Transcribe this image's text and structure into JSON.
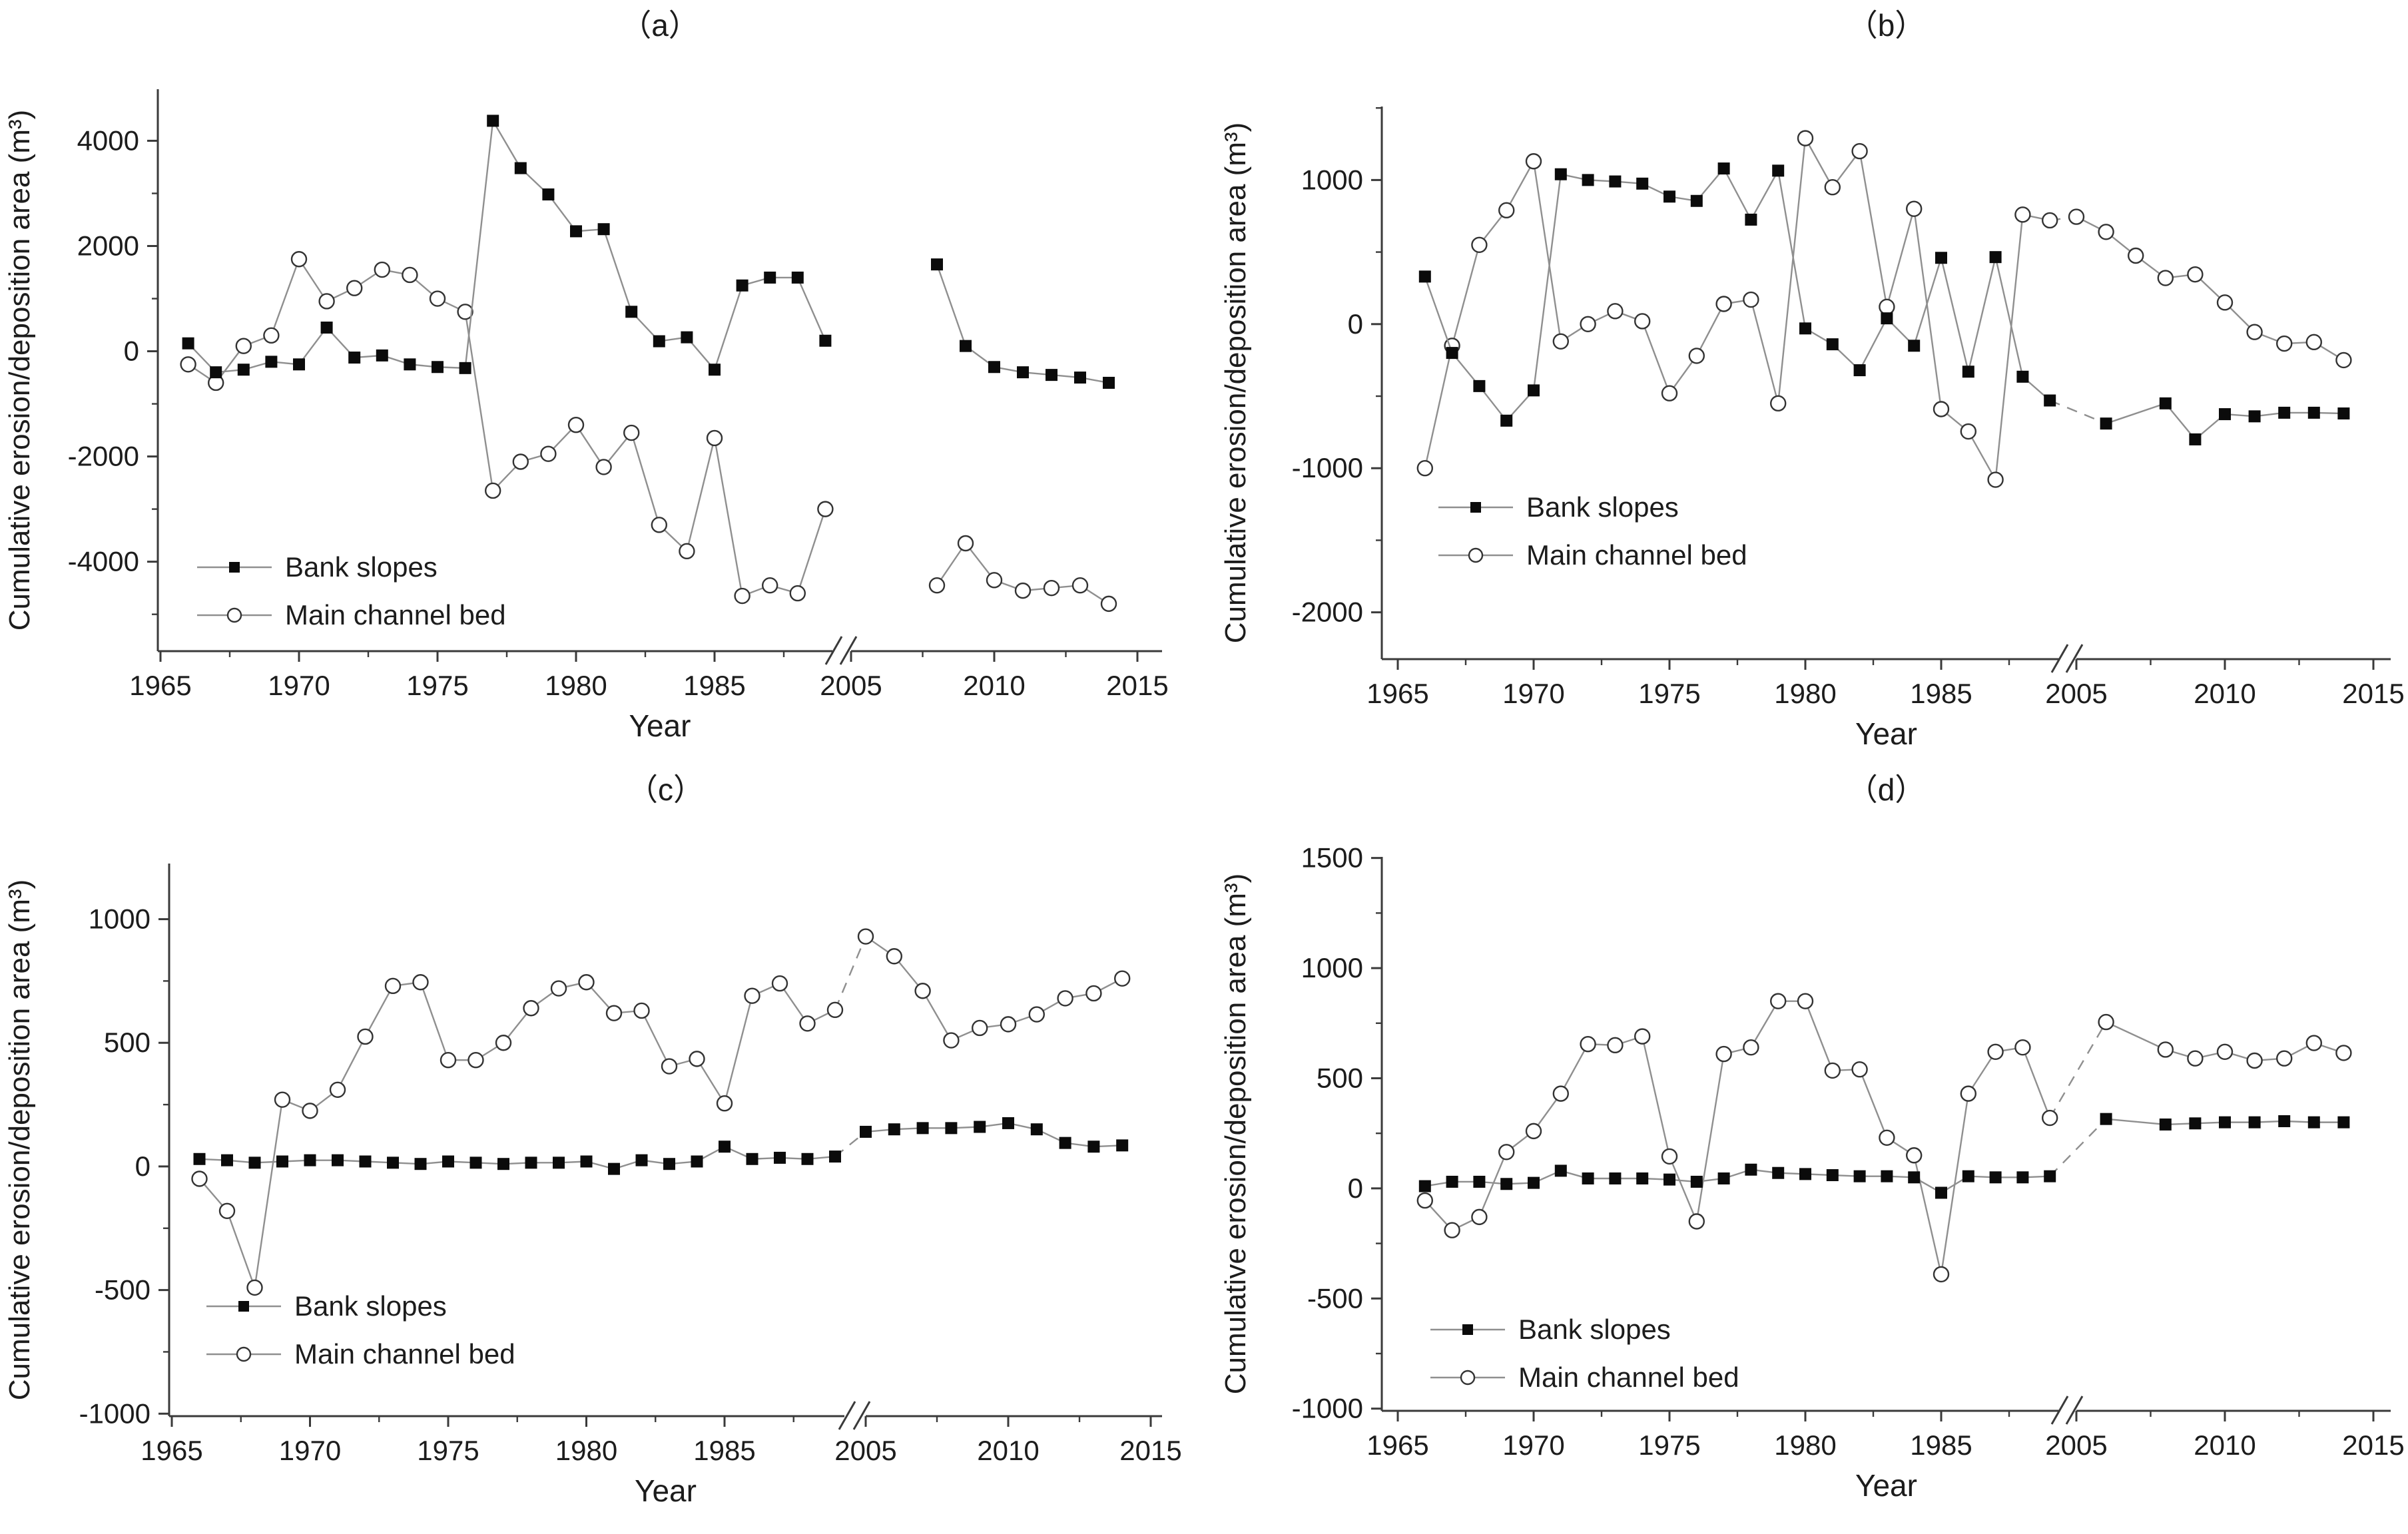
{
  "figure": {
    "background": "#ffffff",
    "line_color": "#8f8f8f",
    "marker_fill": "#0b0b0b",
    "circle_stroke": "#333333",
    "axis_color": "#3a3a3a",
    "text_color": "#1c1c1c",
    "ylabel": "Cumulative erosion/deposition area (m³)",
    "xlabel": "Year",
    "legend": [
      "Bank slopes",
      "Main channel bed"
    ]
  },
  "chart_data": [
    {
      "panel": "（a）",
      "type": "line",
      "xlabel": "Year",
      "ylabel": "Cumulative erosion/deposition area (m³)",
      "ylim": [
        -5700,
        4980
      ],
      "yticks_major": [
        4000,
        2000,
        0,
        -2000,
        -4000
      ],
      "yticks_minor": [
        3000,
        1000,
        -1000,
        -3000,
        -5000
      ],
      "xticks_major": [
        1965,
        1970,
        1975,
        1980,
        1985,
        2005,
        2010,
        2015
      ],
      "xticks_minor": [
        1967.5,
        1972.5,
        1977.5,
        1982.5,
        1987.5,
        2007.5,
        2012.5
      ],
      "axis_break": true,
      "legend_position": "lower-left",
      "series": [
        {
          "name": "Bank slopes",
          "marker": "filled-square",
          "bridge": false,
          "pre": {
            "years": [
              1966,
              1967,
              1968,
              1969,
              1970,
              1971,
              1972,
              1973,
              1974,
              1975,
              1976,
              1977,
              1978,
              1979,
              1980,
              1981,
              1982,
              1983,
              1984,
              1985,
              1986,
              1987,
              1988,
              1989
            ],
            "values": [
              150,
              -400,
              -350,
              -200,
              -250,
              450,
              -120,
              -80,
              -250,
              -300,
              -320,
              4380,
              3480,
              2980,
              2280,
              2320,
              750,
              190,
              265,
              -350,
              1250,
              1400,
              1400,
              200
            ]
          },
          "post": {
            "years": [
              2008,
              2009,
              2010,
              2011,
              2012,
              2013,
              2014
            ],
            "values": [
              1650,
              100,
              -300,
              -400,
              -450,
              -500,
              -600
            ]
          }
        },
        {
          "name": "Main channel bed",
          "marker": "open-circle",
          "bridge": false,
          "pre": {
            "years": [
              1966,
              1967,
              1968,
              1969,
              1970,
              1971,
              1972,
              1973,
              1974,
              1975,
              1976,
              1977,
              1978,
              1979,
              1980,
              1981,
              1982,
              1983,
              1984,
              1985,
              1986,
              1987,
              1988,
              1989
            ],
            "values": [
              -250,
              -600,
              100,
              300,
              1750,
              950,
              1200,
              1550,
              1450,
              1000,
              750,
              -2650,
              -2100,
              -1950,
              -1400,
              -2200,
              -1550,
              -3300,
              -3800,
              -1650,
              -4650,
              -4450,
              -4600,
              -3000
            ]
          },
          "post": {
            "years": [
              2008,
              2009,
              2010,
              2011,
              2012,
              2013,
              2014
            ],
            "values": [
              -4450,
              -3650,
              -4350,
              -4550,
              -4500,
              -4450,
              -4800
            ]
          }
        }
      ]
    },
    {
      "panel": "（b）",
      "type": "line",
      "xlabel": "Year",
      "ylabel": "Cumulative erosion/deposition area (m³)",
      "ylim": [
        -2325,
        1510
      ],
      "yticks_major": [
        1000,
        0,
        -1000,
        -2000
      ],
      "yticks_minor": [
        1500,
        500,
        -500,
        -1500
      ],
      "xticks_major": [
        1965,
        1970,
        1975,
        1980,
        1985,
        2005,
        2010,
        2015
      ],
      "xticks_minor": [
        1967.5,
        1972.5,
        1977.5,
        1982.5,
        1987.5,
        2007.5,
        2012.5
      ],
      "axis_break": true,
      "legend_position": "lower-left",
      "series": [
        {
          "name": "Bank slopes",
          "marker": "filled-square",
          "bridge": true,
          "pre": {
            "years": [
              1966,
              1967,
              1968,
              1969,
              1970,
              1971,
              1972,
              1973,
              1974,
              1975,
              1976,
              1977,
              1978,
              1979,
              1980,
              1981,
              1982,
              1983,
              1984,
              1985,
              1986,
              1987,
              1988,
              1989
            ],
            "values": [
              330,
              -200,
              -430,
              -670,
              -460,
              1040,
              1000,
              990,
              975,
              885,
              855,
              1080,
              725,
              1065,
              -30,
              -140,
              -320,
              40,
              -150,
              460,
              -330,
              465,
              -365,
              -530
            ]
          },
          "post": {
            "years": [
              2006,
              2008,
              2009,
              2010,
              2011,
              2012,
              2013,
              2014
            ],
            "values": [
              -690,
              -550,
              -800,
              -625,
              -640,
              -615,
              -615,
              -620
            ]
          }
        },
        {
          "name": "Main channel bed",
          "marker": "open-circle",
          "bridge": true,
          "pre": {
            "years": [
              1966,
              1967,
              1968,
              1969,
              1970,
              1971,
              1972,
              1973,
              1974,
              1975,
              1976,
              1977,
              1978,
              1979,
              1980,
              1981,
              1982,
              1983,
              1984,
              1985,
              1986,
              1987,
              1988,
              1989
            ],
            "values": [
              -1000,
              -150,
              550,
              790,
              1130,
              -120,
              0,
              90,
              20,
              -480,
              -220,
              140,
              170,
              -550,
              1290,
              950,
              1200,
              120,
              800,
              -590,
              -745,
              -1080,
              760,
              720
            ]
          },
          "post": {
            "years": [
              2005,
              2006,
              2007,
              2008,
              2009,
              2010,
              2011,
              2012,
              2013,
              2014
            ],
            "values": [
              745,
              640,
              475,
              320,
              345,
              150,
              -55,
              -135,
              -125,
              -250
            ]
          }
        }
      ]
    },
    {
      "panel": "（c）",
      "type": "line",
      "xlabel": "Year",
      "ylabel": "Cumulative erosion/deposition area (m³)",
      "ylim": [
        -1010,
        1225
      ],
      "yticks_major": [
        1000,
        500,
        0,
        -500,
        -1000
      ],
      "yticks_minor": [
        750,
        250,
        -250,
        -750
      ],
      "xticks_major": [
        1965,
        1970,
        1975,
        1980,
        1985,
        2005,
        2010,
        2015
      ],
      "xticks_minor": [
        1967.5,
        1972.5,
        1977.5,
        1982.5,
        1987.5,
        2007.5,
        2012.5
      ],
      "axis_break": true,
      "legend_position": "lower-left",
      "series": [
        {
          "name": "Bank slopes",
          "marker": "filled-square",
          "bridge": true,
          "pre": {
            "years": [
              1966,
              1967,
              1968,
              1969,
              1970,
              1971,
              1972,
              1973,
              1974,
              1975,
              1976,
              1977,
              1978,
              1979,
              1980,
              1981,
              1982,
              1983,
              1984,
              1985,
              1986,
              1987,
              1988,
              1989
            ],
            "values": [
              30,
              25,
              15,
              20,
              25,
              25,
              20,
              15,
              10,
              20,
              15,
              10,
              15,
              15,
              20,
              -10,
              25,
              10,
              20,
              80,
              30,
              35,
              30,
              40
            ]
          },
          "post": {
            "years": [
              2005,
              2006,
              2007,
              2008,
              2009,
              2010,
              2011,
              2012,
              2013,
              2014
            ],
            "values": [
              140,
              150,
              155,
              155,
              160,
              175,
              150,
              95,
              80,
              85
            ]
          }
        },
        {
          "name": "Main channel bed",
          "marker": "open-circle",
          "bridge": true,
          "pre": {
            "years": [
              1966,
              1967,
              1968,
              1969,
              1970,
              1971,
              1972,
              1973,
              1974,
              1975,
              1976,
              1977,
              1978,
              1979,
              1980,
              1981,
              1982,
              1983,
              1984,
              1985,
              1986,
              1987,
              1988,
              1989
            ],
            "values": [
              -50,
              -180,
              -490,
              270,
              225,
              310,
              525,
              730,
              745,
              430,
              430,
              500,
              640,
              720,
              745,
              620,
              630,
              405,
              435,
              255,
              690,
              740,
              578,
              633
            ]
          },
          "post": {
            "years": [
              2005,
              2006,
              2007,
              2008,
              2009,
              2010,
              2011,
              2012,
              2013,
              2014
            ],
            "values": [
              930,
              850,
              710,
              510,
              560,
              575,
              615,
              680,
              700,
              760
            ]
          }
        }
      ]
    },
    {
      "panel": "（d）",
      "type": "line",
      "xlabel": "Year",
      "ylabel": "Cumulative erosion/deposition area (m³)",
      "ylim": [
        -1010,
        1505
      ],
      "yticks_major": [
        1500,
        1000,
        500,
        0,
        -500,
        -1000
      ],
      "yticks_minor": [
        1250,
        750,
        250,
        -250,
        -750
      ],
      "xticks_major": [
        1965,
        1970,
        1975,
        1980,
        1985,
        2005,
        2010,
        2015
      ],
      "xticks_minor": [
        1967.5,
        1972.5,
        1977.5,
        1982.5,
        1987.5,
        2007.5,
        2012.5
      ],
      "axis_break": true,
      "legend_position": "lower-left",
      "series": [
        {
          "name": "Bank slopes",
          "marker": "filled-square",
          "bridge": true,
          "pre": {
            "years": [
              1966,
              1967,
              1968,
              1969,
              1970,
              1971,
              1972,
              1973,
              1974,
              1975,
              1976,
              1977,
              1978,
              1979,
              1980,
              1981,
              1982,
              1983,
              1984,
              1985,
              1986,
              1987,
              1988,
              1989
            ],
            "values": [
              10,
              30,
              30,
              20,
              25,
              80,
              45,
              45,
              45,
              40,
              30,
              45,
              85,
              70,
              65,
              60,
              55,
              55,
              50,
              -20,
              55,
              50,
              50,
              55
            ]
          },
          "post": {
            "years": [
              2006,
              2008,
              2009,
              2010,
              2011,
              2012,
              2013,
              2014
            ],
            "values": [
              315,
              290,
              295,
              300,
              300,
              305,
              300,
              300
            ]
          }
        },
        {
          "name": "Main channel bed",
          "marker": "open-circle",
          "bridge": true,
          "pre": {
            "years": [
              1966,
              1967,
              1968,
              1969,
              1970,
              1971,
              1972,
              1973,
              1974,
              1975,
              1976,
              1977,
              1978,
              1979,
              1980,
              1981,
              1982,
              1983,
              1984,
              1985,
              1986,
              1987,
              1988,
              1989
            ],
            "values": [
              -55,
              -190,
              -130,
              165,
              260,
              430,
              655,
              650,
              690,
              145,
              -150,
              610,
              640,
              850,
              850,
              535,
              540,
              230,
              150,
              -390,
              430,
              620,
              640,
              320
            ]
          },
          "post": {
            "years": [
              2006,
              2008,
              2009,
              2010,
              2011,
              2012,
              2013,
              2014
            ],
            "values": [
              755,
              630,
              590,
              620,
              580,
              590,
              660,
              615
            ]
          }
        }
      ]
    }
  ]
}
